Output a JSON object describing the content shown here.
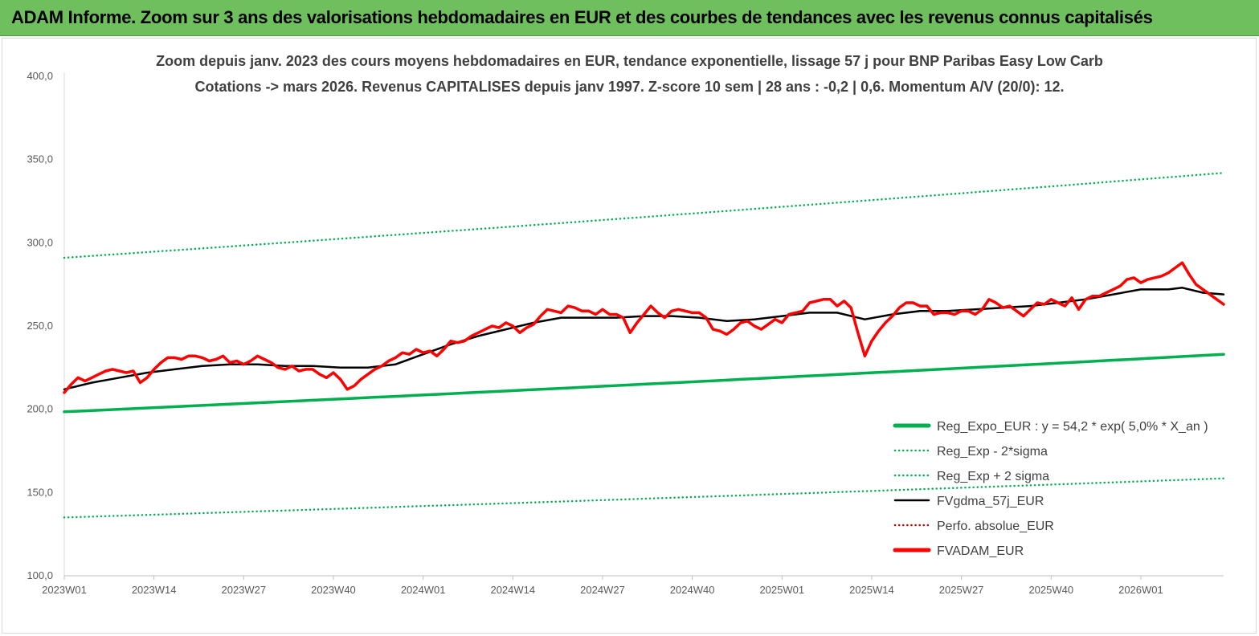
{
  "banner": {
    "title": "ADAM Informe. Zoom sur 3 ans des valorisations hebdomadaires en EUR et des courbes de tendances avec les revenus connus capitalisés"
  },
  "chart_data": {
    "type": "line",
    "title": "Zoom depuis janv. 2023 des cours moyens hebdomadaires en EUR, tendance exponentielle, lissage 57 j pour BNP Paribas Easy Low Carb",
    "subtitle": "Cotations -> mars 2026. Revenus CAPITALISES depuis janv 1997. Z-score 10 sem | 28 ans : -0,2 | 0,6. Momentum A/V (20/0): 12.",
    "xlabel": "",
    "ylabel": "",
    "ylim": [
      100,
      400
    ],
    "yticks": [
      "100,0",
      "150,0",
      "200,0",
      "250,0",
      "300,0",
      "350,0",
      "400,0"
    ],
    "xticks": [
      "2023W01",
      "2023W14",
      "2023W27",
      "2023W40",
      "2024W01",
      "2024W14",
      "2024W27",
      "2024W40",
      "2025W01",
      "2025W14",
      "2025W27",
      "2025W40",
      "2026W01"
    ],
    "x_range_weeks": [
      0,
      168
    ],
    "grid": false,
    "legend_position": "bottom-right",
    "series": [
      {
        "name": "Reg_Expo_EUR : y = 54,2 * exp( 5,0% *  X_an )",
        "color": "#00b050",
        "style": "solid-thick",
        "start": 198.5,
        "end": 233.0
      },
      {
        "name": "Reg_Exp - 2*sigma",
        "color": "#00b050",
        "style": "dotted",
        "start": 135.0,
        "end": 158.5
      },
      {
        "name": "Reg_Exp + 2 sigma",
        "color": "#00b050",
        "style": "dotted",
        "start": 291.0,
        "end": 342.0
      },
      {
        "name": "FVgdma_57j_EUR",
        "color": "#000000",
        "style": "solid",
        "points": [
          [
            0,
            212
          ],
          [
            4,
            216
          ],
          [
            8,
            219
          ],
          [
            12,
            222
          ],
          [
            16,
            224
          ],
          [
            20,
            226
          ],
          [
            24,
            227
          ],
          [
            28,
            227
          ],
          [
            32,
            226
          ],
          [
            36,
            226
          ],
          [
            40,
            225
          ],
          [
            44,
            225
          ],
          [
            48,
            227
          ],
          [
            52,
            233
          ],
          [
            56,
            239
          ],
          [
            60,
            244
          ],
          [
            64,
            248
          ],
          [
            68,
            252
          ],
          [
            72,
            255
          ],
          [
            76,
            255
          ],
          [
            80,
            255
          ],
          [
            84,
            256
          ],
          [
            88,
            256
          ],
          [
            92,
            255
          ],
          [
            96,
            253
          ],
          [
            100,
            254
          ],
          [
            104,
            256
          ],
          [
            108,
            258
          ],
          [
            112,
            258
          ],
          [
            116,
            254
          ],
          [
            120,
            257
          ],
          [
            124,
            259
          ],
          [
            128,
            259
          ],
          [
            132,
            260
          ],
          [
            136,
            261
          ],
          [
            140,
            262
          ],
          [
            144,
            264
          ],
          [
            148,
            266
          ],
          [
            152,
            269
          ],
          [
            156,
            272
          ],
          [
            160,
            272
          ],
          [
            162,
            273
          ],
          [
            165,
            270
          ],
          [
            168,
            269
          ]
        ]
      },
      {
        "name": "Perfo. absolue_EUR",
        "color": "#c00000",
        "style": "dotted",
        "points": []
      },
      {
        "name": "FVADAM_EUR",
        "color": "#ff0000",
        "style": "solid-thick",
        "points": [
          [
            0,
            210
          ],
          [
            1,
            215
          ],
          [
            2,
            219
          ],
          [
            3,
            217
          ],
          [
            4,
            219
          ],
          [
            5,
            221
          ],
          [
            6,
            223
          ],
          [
            7,
            224
          ],
          [
            8,
            223
          ],
          [
            9,
            222
          ],
          [
            10,
            223
          ],
          [
            11,
            216
          ],
          [
            12,
            219
          ],
          [
            13,
            224
          ],
          [
            14,
            228
          ],
          [
            15,
            231
          ],
          [
            16,
            231
          ],
          [
            17,
            230
          ],
          [
            18,
            232
          ],
          [
            19,
            232
          ],
          [
            20,
            231
          ],
          [
            21,
            229
          ],
          [
            22,
            230
          ],
          [
            23,
            232
          ],
          [
            24,
            228
          ],
          [
            25,
            229
          ],
          [
            26,
            227
          ],
          [
            27,
            229
          ],
          [
            28,
            232
          ],
          [
            29,
            230
          ],
          [
            30,
            228
          ],
          [
            31,
            225
          ],
          [
            32,
            224
          ],
          [
            33,
            226
          ],
          [
            34,
            223
          ],
          [
            35,
            224
          ],
          [
            36,
            224
          ],
          [
            37,
            221
          ],
          [
            38,
            219
          ],
          [
            39,
            222
          ],
          [
            40,
            218
          ],
          [
            41,
            212
          ],
          [
            42,
            214
          ],
          [
            43,
            218
          ],
          [
            44,
            221
          ],
          [
            45,
            224
          ],
          [
            46,
            226
          ],
          [
            47,
            229
          ],
          [
            48,
            231
          ],
          [
            49,
            234
          ],
          [
            50,
            233
          ],
          [
            51,
            236
          ],
          [
            52,
            234
          ],
          [
            53,
            235
          ],
          [
            54,
            232
          ],
          [
            55,
            236
          ],
          [
            56,
            241
          ],
          [
            57,
            240
          ],
          [
            58,
            241
          ],
          [
            59,
            244
          ],
          [
            60,
            246
          ],
          [
            61,
            248
          ],
          [
            62,
            250
          ],
          [
            63,
            249
          ],
          [
            64,
            252
          ],
          [
            65,
            250
          ],
          [
            66,
            246
          ],
          [
            67,
            249
          ],
          [
            68,
            251
          ],
          [
            69,
            256
          ],
          [
            70,
            260
          ],
          [
            71,
            259
          ],
          [
            72,
            258
          ],
          [
            73,
            262
          ],
          [
            74,
            261
          ],
          [
            75,
            259
          ],
          [
            76,
            259
          ],
          [
            77,
            257
          ],
          [
            78,
            260
          ],
          [
            79,
            257
          ],
          [
            80,
            257
          ],
          [
            81,
            255
          ],
          [
            82,
            246
          ],
          [
            83,
            252
          ],
          [
            84,
            257
          ],
          [
            85,
            262
          ],
          [
            86,
            258
          ],
          [
            87,
            255
          ],
          [
            88,
            259
          ],
          [
            89,
            260
          ],
          [
            90,
            259
          ],
          [
            91,
            258
          ],
          [
            92,
            258
          ],
          [
            93,
            255
          ],
          [
            94,
            248
          ],
          [
            95,
            247
          ],
          [
            96,
            245
          ],
          [
            97,
            248
          ],
          [
            98,
            252
          ],
          [
            99,
            253
          ],
          [
            100,
            250
          ],
          [
            101,
            248
          ],
          [
            102,
            251
          ],
          [
            103,
            254
          ],
          [
            104,
            252
          ],
          [
            105,
            257
          ],
          [
            106,
            258
          ],
          [
            107,
            259
          ],
          [
            108,
            264
          ],
          [
            109,
            265
          ],
          [
            110,
            266
          ],
          [
            111,
            266
          ],
          [
            112,
            262
          ],
          [
            113,
            265
          ],
          [
            114,
            261
          ],
          [
            115,
            246
          ],
          [
            116,
            232
          ],
          [
            117,
            241
          ],
          [
            118,
            247
          ],
          [
            119,
            252
          ],
          [
            120,
            256
          ],
          [
            121,
            261
          ],
          [
            122,
            264
          ],
          [
            123,
            264
          ],
          [
            124,
            262
          ],
          [
            125,
            262
          ],
          [
            126,
            257
          ],
          [
            127,
            258
          ],
          [
            128,
            258
          ],
          [
            129,
            257
          ],
          [
            130,
            259
          ],
          [
            131,
            259
          ],
          [
            132,
            257
          ],
          [
            133,
            260
          ],
          [
            134,
            266
          ],
          [
            135,
            264
          ],
          [
            136,
            261
          ],
          [
            137,
            262
          ],
          [
            138,
            259
          ],
          [
            139,
            256
          ],
          [
            140,
            260
          ],
          [
            141,
            264
          ],
          [
            142,
            263
          ],
          [
            143,
            266
          ],
          [
            144,
            264
          ],
          [
            145,
            262
          ],
          [
            146,
            267
          ],
          [
            147,
            260
          ],
          [
            148,
            266
          ],
          [
            149,
            268
          ],
          [
            150,
            268
          ],
          [
            151,
            270
          ],
          [
            152,
            272
          ],
          [
            153,
            274
          ],
          [
            154,
            278
          ],
          [
            155,
            279
          ],
          [
            156,
            276
          ],
          [
            157,
            278
          ],
          [
            158,
            279
          ],
          [
            159,
            280
          ],
          [
            160,
            282
          ],
          [
            161,
            285
          ],
          [
            162,
            288
          ],
          [
            163,
            281
          ],
          [
            164,
            275
          ],
          [
            165,
            272
          ],
          [
            166,
            269
          ],
          [
            167,
            266
          ],
          [
            168,
            263
          ]
        ]
      }
    ]
  }
}
